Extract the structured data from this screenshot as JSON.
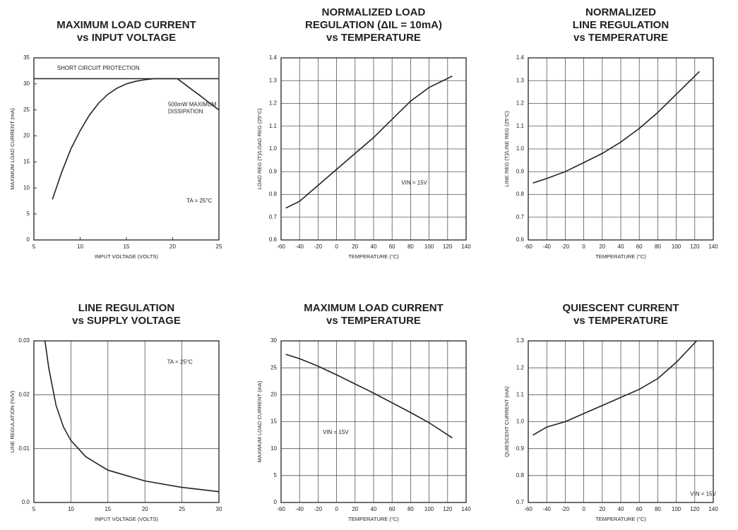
{
  "chart_data": [
    {
      "type": "line",
      "title": [
        "MAXIMUM LOAD CURRENT",
        "vs INPUT VOLTAGE"
      ],
      "xlabel": "INPUT VOLTAGE (VOLTS)",
      "ylabel": "MAXIMUM LOAD CURRENT (mA)",
      "xlim": [
        5,
        25
      ],
      "xticks": [
        5,
        10,
        15,
        20,
        25
      ],
      "ylim": [
        0,
        35
      ],
      "yticks": [
        0,
        5,
        10,
        15,
        20,
        25,
        30,
        35
      ],
      "grid": false,
      "series": [
        {
          "color": "#222",
          "x": [
            7,
            8,
            9,
            10,
            11,
            12,
            13,
            14,
            15,
            16,
            17,
            18,
            19,
            20,
            20.5,
            22,
            23,
            24,
            25
          ],
          "values": [
            7.8,
            13,
            17.5,
            21,
            24,
            26.3,
            28,
            29.2,
            30,
            30.5,
            30.8,
            31,
            31,
            31,
            31,
            29,
            27.7,
            26.3,
            25
          ]
        },
        {
          "color": "#222",
          "x": [
            5,
            25
          ],
          "values": [
            31,
            31
          ]
        }
      ],
      "annotations": [
        {
          "lines": [
            "SHORT CIRCUIT PROTECTION"
          ],
          "x": 7.5,
          "y": 33
        },
        {
          "lines": [
            "500mW MAXIMUM",
            "DISSIPATION"
          ],
          "x": 19.5,
          "y": 26
        },
        {
          "lines": [
            "TA = 25°C"
          ],
          "x": 21.5,
          "y": 7.5
        }
      ]
    },
    {
      "type": "line",
      "title": [
        "NORMALIZED LOAD",
        "REGULATION (ΔIL = 10mA)",
        "vs TEMPERATURE"
      ],
      "xlabel": "TEMPERATURE (°C)",
      "ylabel": "LOAD REG (T)/LOAD REG (25°C)",
      "xlim": [
        -60,
        140
      ],
      "xticks": [
        -60,
        -40,
        -20,
        0,
        20,
        40,
        60,
        80,
        100,
        120,
        140
      ],
      "ylim": [
        0.6,
        1.4
      ],
      "yticks": [
        0.6,
        0.7,
        0.8,
        0.9,
        {
          "value": 1,
          "label": "1.0"
        },
        1.1,
        1.2,
        1.3,
        1.4
      ],
      "grid": true,
      "series": [
        {
          "color": "#222",
          "x": [
            -55,
            -40,
            -20,
            0,
            20,
            40,
            60,
            80,
            100,
            125
          ],
          "values": [
            0.74,
            0.77,
            0.84,
            0.91,
            0.98,
            1.05,
            1.13,
            1.21,
            1.27,
            1.32
          ]
        }
      ],
      "annotations": [
        {
          "lines": [
            "VIN = 15V"
          ],
          "x": 70,
          "y": 0.85
        }
      ]
    },
    {
      "type": "line",
      "title": [
        "NORMALIZED",
        "LINE REGULATION",
        "vs TEMPERATURE"
      ],
      "xlabel": "TEMPERATURE (°C)",
      "ylabel": "LINE REG (T)/LINE REG (25°C)",
      "xlim": [
        -60,
        140
      ],
      "xticks": [
        -60,
        -40,
        -20,
        0,
        20,
        40,
        60,
        80,
        100,
        120,
        140
      ],
      "ylim": [
        0.6,
        1.4
      ],
      "yticks": [
        0.6,
        0.7,
        0.8,
        0.9,
        {
          "value": 1,
          "label": "1.0"
        },
        1.1,
        1.2,
        1.3,
        1.4
      ],
      "grid": true,
      "series": [
        {
          "color": "#222",
          "x": [
            -55,
            -40,
            -20,
            0,
            20,
            40,
            60,
            80,
            100,
            125
          ],
          "values": [
            0.85,
            0.87,
            0.9,
            0.94,
            0.98,
            1.03,
            1.09,
            1.16,
            1.24,
            1.34
          ]
        }
      ]
    },
    {
      "type": "line",
      "title": [
        "LINE REGULATION",
        "vs SUPPLY VOLTAGE"
      ],
      "xlabel": "INPUT VOLTAGE (VOLTS)",
      "ylabel": "LINE REGULATION (%/V)",
      "xlim": [
        5,
        30
      ],
      "xticks": [
        5,
        10,
        15,
        20,
        25,
        30
      ],
      "ylim": [
        0,
        0.03
      ],
      "yticks": [
        {
          "value": 0,
          "label": "0.0"
        },
        0.01,
        0.02,
        0.03
      ],
      "grid": true,
      "series": [
        {
          "color": "#222",
          "x": [
            6.5,
            7,
            8,
            9,
            10,
            12,
            15,
            20,
            25,
            30
          ],
          "values": [
            0.03,
            0.025,
            0.018,
            0.014,
            0.0115,
            0.0085,
            0.006,
            0.004,
            0.0028,
            0.002
          ]
        }
      ],
      "annotations": [
        {
          "lines": [
            "TA = 25°C"
          ],
          "x": 23,
          "y": 0.026
        }
      ]
    },
    {
      "type": "line",
      "title": [
        "MAXIMUM LOAD CURRENT",
        "vs TEMPERATURE"
      ],
      "xlabel": "TEMPERATURE (°C)",
      "ylabel": "MAXIMUM LOAD CURRENT (mA)",
      "xlim": [
        -60,
        140
      ],
      "xticks": [
        -60,
        -40,
        -20,
        0,
        20,
        40,
        60,
        80,
        100,
        120,
        140
      ],
      "ylim": [
        0,
        30
      ],
      "yticks": [
        0,
        5,
        10,
        15,
        20,
        25,
        30
      ],
      "grid": true,
      "series": [
        {
          "color": "#222",
          "x": [
            -55,
            -40,
            -20,
            0,
            20,
            40,
            60,
            80,
            100,
            125
          ],
          "values": [
            27.5,
            26.7,
            25.3,
            23.7,
            22,
            20.3,
            18.5,
            16.7,
            14.8,
            12
          ]
        }
      ],
      "annotations": [
        {
          "lines": [
            "VIN = 15V"
          ],
          "x": -15,
          "y": 13
        }
      ]
    },
    {
      "type": "line",
      "title": [
        "QUIESCENT CURRENT",
        "vs TEMPERATURE"
      ],
      "xlabel": "TEMPERATURE (°C)",
      "ylabel": "QUIESCENT CURRENT (mA)",
      "xlim": [
        -60,
        140
      ],
      "xticks": [
        -60,
        -40,
        -20,
        0,
        20,
        40,
        60,
        80,
        100,
        120,
        140
      ],
      "ylim": [
        0.7,
        1.3
      ],
      "yticks": [
        0.7,
        0.8,
        0.9,
        {
          "value": 1,
          "label": "1.0"
        },
        1.1,
        1.2,
        1.3
      ],
      "grid": true,
      "series": [
        {
          "color": "#222",
          "x": [
            -55,
            -40,
            -20,
            0,
            20,
            40,
            60,
            80,
            100,
            122
          ],
          "values": [
            0.95,
            0.98,
            1.0,
            1.03,
            1.06,
            1.09,
            1.12,
            1.16,
            1.22,
            1.3
          ]
        }
      ],
      "annotations": [
        {
          "lines": [
            "VIN = 15V"
          ],
          "x": 115,
          "y": 0.73
        }
      ]
    }
  ]
}
